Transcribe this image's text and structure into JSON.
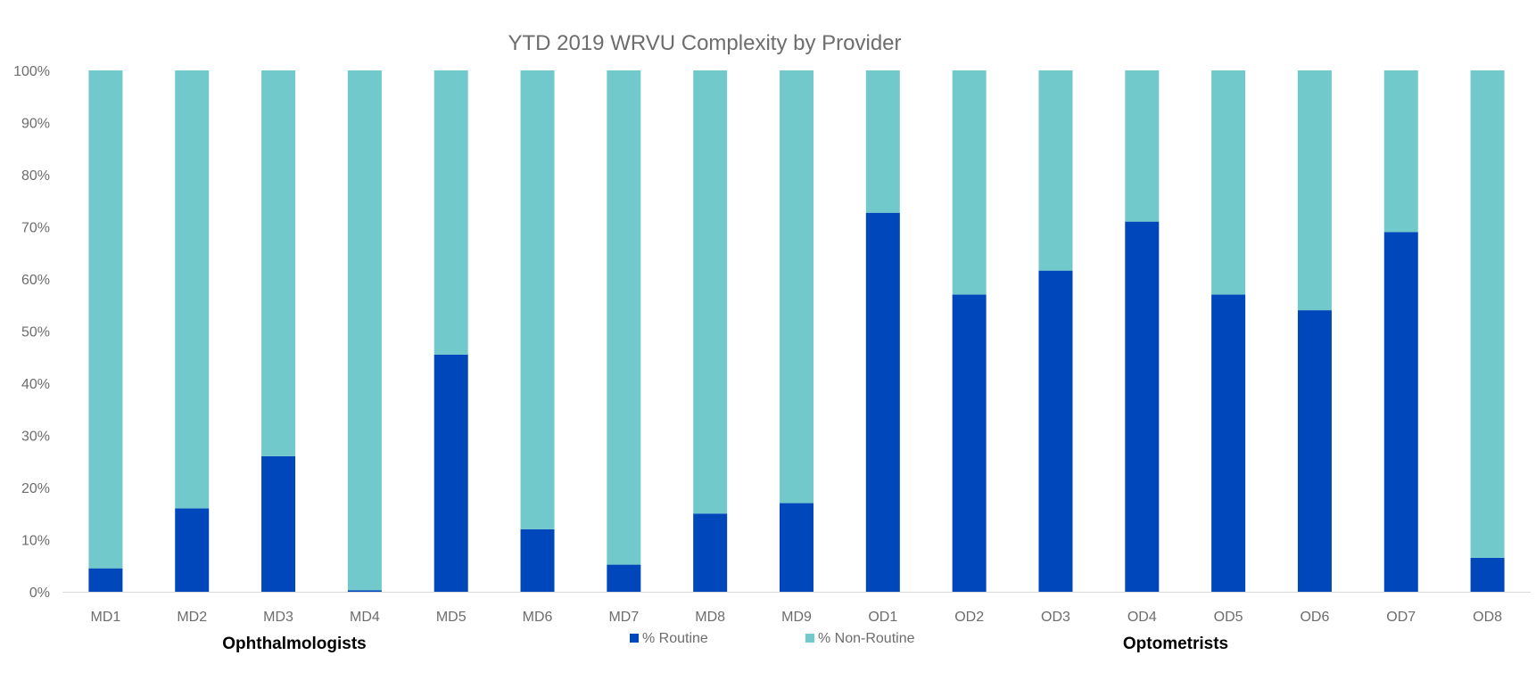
{
  "chart_data": {
    "type": "bar",
    "stacked": true,
    "title": "YTD 2019 WRVU Complexity by Provider",
    "categories": [
      "MD1",
      "MD2",
      "MD3",
      "MD4",
      "MD5",
      "MD6",
      "MD7",
      "MD8",
      "MD9",
      "OD1",
      "OD2",
      "OD3",
      "OD4",
      "OD5",
      "OD6",
      "OD7",
      "OD8"
    ],
    "series": [
      {
        "name": "% Routine",
        "color": "#0047bb",
        "values": [
          4.5,
          16,
          26,
          0.3,
          45.5,
          12,
          5.2,
          15,
          17,
          72.7,
          57,
          61.6,
          71,
          57,
          54,
          69,
          6.5
        ]
      },
      {
        "name": "% Non-Routine",
        "color": "#72c9cb",
        "values": [
          95.5,
          84,
          74,
          99.7,
          54.5,
          88,
          94.8,
          85,
          83,
          27.3,
          43,
          38.4,
          29,
          43,
          46,
          31,
          93.5
        ]
      }
    ],
    "ylim": [
      0,
      100
    ],
    "y_ticks": [
      "0%",
      "10%",
      "20%",
      "30%",
      "40%",
      "50%",
      "60%",
      "70%",
      "80%",
      "90%",
      "100%"
    ],
    "groups": [
      {
        "label": "Ophthalmologists"
      },
      {
        "label": "Optometrists"
      }
    ],
    "legend_position": "bottom",
    "grid": false
  }
}
